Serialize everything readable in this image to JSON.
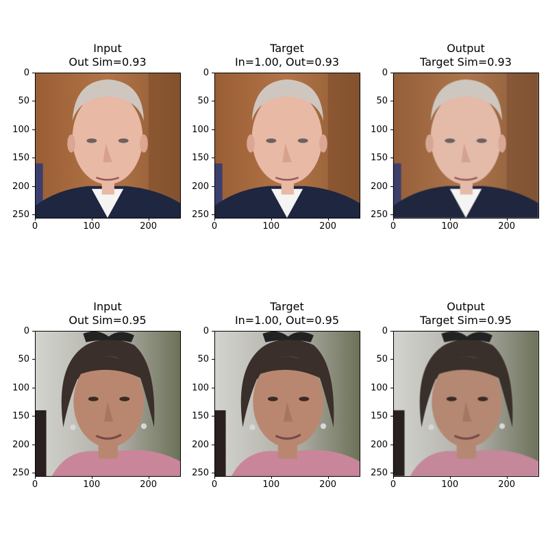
{
  "figure": {
    "rows": [
      {
        "panels": [
          {
            "title_line1": "Input",
            "title_line2": "Out Sim=0.93"
          },
          {
            "title_line1": "Target",
            "title_line2": "In=1.00, Out=0.93"
          },
          {
            "title_line1": "Output",
            "title_line2": "Target Sim=0.93"
          }
        ]
      },
      {
        "panels": [
          {
            "title_line1": "Input",
            "title_line2": "Out Sim=0.95"
          },
          {
            "title_line1": "Target",
            "title_line2": "In=1.00, Out=0.95"
          },
          {
            "title_line1": "Output",
            "title_line2": "Target Sim=0.95"
          }
        ]
      }
    ],
    "y_ticks": [
      "0",
      "50",
      "100",
      "150",
      "200",
      "250"
    ],
    "x_ticks": [
      "0",
      "100",
      "200"
    ],
    "colors": {
      "row1_background": "#a86a3e",
      "row1_skin": "#e8b9a5",
      "row1_hair": "#cfc7bf",
      "row1_suit": "#1e2640",
      "row2_background": "#bdbdb5",
      "row2_skin": "#b98770",
      "row2_hair": "#3a2f2a",
      "row2_top": "#c9869a"
    }
  }
}
